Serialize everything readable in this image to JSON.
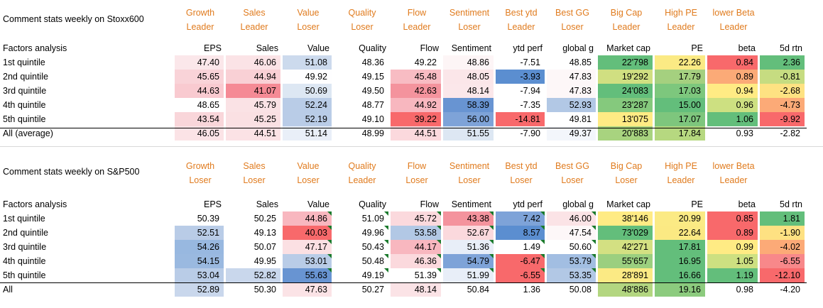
{
  "tables": [
    {
      "title": "Comment stats weekly on Stoxx600",
      "row_header_label": "Factors analysis",
      "headers": [
        [
          "Growth",
          "Leader"
        ],
        [
          "Sales",
          "Leader"
        ],
        [
          "Value",
          "Loser"
        ],
        [
          "Quality",
          "Loser"
        ],
        [
          "Flow",
          "Leader"
        ],
        [
          "Sentiment",
          "Loser"
        ],
        [
          "Best ytd",
          "Leader"
        ],
        [
          "Best GG",
          "Loser"
        ],
        [
          "Big Cap",
          "Leader"
        ],
        [
          "High PE",
          "Leader"
        ],
        [
          "lower Beta",
          "Leader"
        ],
        [
          "",
          ""
        ]
      ],
      "columns": [
        "EPS",
        "Sales",
        "Value",
        "Quality",
        "Flow",
        "Sentiment",
        "ytd perf",
        "global g",
        "Market cap",
        "PE",
        "beta",
        "5d rtn"
      ],
      "rows": [
        {
          "label": "1st quintile",
          "values": [
            "47.40",
            "46.06",
            "51.08",
            "48.36",
            "49.22",
            "48.86",
            "-7.51",
            "48.85",
            "22'798",
            "22.26",
            "0.84",
            "2.36"
          ],
          "colors": [
            "#fbe7ea",
            "#fbe3e6",
            "#ccdaed",
            "#ffffff",
            "#ffffff",
            "#fdf5f6",
            "#ffffff",
            "#ffffff",
            "#63be7b",
            "#fbea84",
            "#f8696b",
            "#63be7b"
          ]
        },
        {
          "label": "2nd quintile",
          "values": [
            "45.65",
            "44.94",
            "49.92",
            "49.15",
            "45.48",
            "48.05",
            "-3.93",
            "47.83",
            "19'292",
            "17.79",
            "0.89",
            "-0.81"
          ],
          "colors": [
            "#f9d3d8",
            "#f9d0d5",
            "#fefeff",
            "#ffffff",
            "#f8bcc3",
            "#fbe6e9",
            "#5b8ed0",
            "#fdf7f8",
            "#d0df81",
            "#a5d07f",
            "#fbaa77",
            "#c6dc81"
          ]
        },
        {
          "label": "3rd quintile",
          "values": [
            "44.63",
            "41.07",
            "50.69",
            "49.50",
            "42.63",
            "48.14",
            "-7.94",
            "47.83",
            "24'083",
            "17.03",
            "0.94",
            "-2.68"
          ],
          "colors": [
            "#f9cad0",
            "#f58a95",
            "#dde7f3",
            "#ffffff",
            "#f4939d",
            "#fbe7ea",
            "#ffffff",
            "#fdf7f8",
            "#63be7b",
            "#7dc77d",
            "#ffeb84",
            "#fee282"
          ]
        },
        {
          "label": "4th quintile",
          "values": [
            "48.65",
            "45.79",
            "52.24",
            "48.77",
            "44.92",
            "58.39",
            "-7.35",
            "52.93",
            "23'287",
            "15.00",
            "0.96",
            "-4.73"
          ],
          "colors": [
            "#ffffff",
            "#fae2e5",
            "#b9cce7",
            "#ffffff",
            "#f8b7bf",
            "#6894d2",
            "#ffffff",
            "#b2c8e5",
            "#85c97d",
            "#63be7b",
            "#cde081",
            "#fcaa77"
          ]
        },
        {
          "label": "5th quintile",
          "values": [
            "43.54",
            "45.25",
            "52.19",
            "49.10",
            "39.22",
            "56.00",
            "-14.81",
            "49.81",
            "13'075",
            "17.07",
            "1.06",
            "-9.92"
          ],
          "colors": [
            "#f9d6da",
            "#fae0e3",
            "#b9cce7",
            "#ffffff",
            "#f8696b",
            "#7ea3d8",
            "#f8696b",
            "#ffffff",
            "#ffeb84",
            "#7ec67d",
            "#63be7b",
            "#f8696b"
          ]
        },
        {
          "label": "All (average)",
          "values": [
            "46.05",
            "44.51",
            "51.14",
            "48.99",
            "44.51",
            "51.55",
            "-7.90",
            "49.37",
            "20'883",
            "17.84",
            "0.93",
            "-2.82"
          ],
          "colors": [
            "#fbe3e6",
            "#fbe2e5",
            "#e9eff8",
            "#ffffff",
            "#fbd9dd",
            "#dde7f3",
            "#ffffff",
            "#f3f6fb",
            "#a8d37f",
            "#b6d880",
            "#ffffff",
            "#ffffff"
          ]
        }
      ]
    },
    {
      "title": "Comment stats weekly on S&P500",
      "row_header_label": "Factors analysis",
      "headers": [
        [
          "Growth",
          "Loser"
        ],
        [
          "Sales",
          "Loser"
        ],
        [
          "Value",
          "Loser"
        ],
        [
          "Quality",
          "Leader"
        ],
        [
          "Flow",
          "Loser"
        ],
        [
          "Sentiment",
          "Loser"
        ],
        [
          "Best ytd",
          "Loser"
        ],
        [
          "Best GG",
          "Loser"
        ],
        [
          "Big Cap",
          "Loser"
        ],
        [
          "High PE",
          "Leader"
        ],
        [
          "lower Beta",
          "Leader"
        ],
        [
          "",
          ""
        ]
      ],
      "columns": [
        "EPS",
        "Sales",
        "Value",
        "Quality",
        "Flow",
        "Sentiment",
        "ytd perf",
        "global g",
        "Market cap",
        "PE",
        "beta",
        "5d rtn"
      ],
      "rows": [
        {
          "label": "1st quintile",
          "values": [
            "50.39",
            "50.25",
            "44.86",
            "51.09",
            "45.72",
            "43.38",
            "7.42",
            "46.00",
            "38'146",
            "20.99",
            "0.85",
            "1.81"
          ],
          "colors": [
            "#ffffff",
            "#ffffff",
            "#f8b7bf",
            "#ffffff",
            "#fbd9dd",
            "#f4939d",
            "#7ea3d8",
            "#fbe3e6",
            "#ffeb84",
            "#fbea84",
            "#f8696b",
            "#63be7b"
          ]
        },
        {
          "label": "2nd quintile",
          "values": [
            "52.51",
            "49.13",
            "40.03",
            "49.96",
            "53.58",
            "52.67",
            "8.57",
            "47.54",
            "73'029",
            "22.64",
            "0.89",
            "-1.90"
          ],
          "colors": [
            "#b9cce7",
            "#ffffff",
            "#f8696b",
            "#ffffff",
            "#b2c8e5",
            "#fbd9dd",
            "#5b8ed0",
            "#fdf7f8",
            "#63be7b",
            "#fbe983",
            "#f8696b",
            "#fee182"
          ]
        },
        {
          "label": "3rd quintile",
          "values": [
            "54.26",
            "50.07",
            "47.17",
            "50.43",
            "44.17",
            "51.36",
            "1.49",
            "50.60",
            "42'271",
            "17.81",
            "0.99",
            "-4.02"
          ],
          "colors": [
            "#98b8e0",
            "#ffffff",
            "#fbe0e3",
            "#ffffff",
            "#f8b7bf",
            "#e8eef8",
            "#ffffff",
            "#ffffff",
            "#d3e082",
            "#63be7b",
            "#ffeb84",
            "#fcaa77"
          ]
        },
        {
          "label": "4th quintile",
          "values": [
            "54.15",
            "49.95",
            "53.01",
            "50.48",
            "46.36",
            "54.79",
            "-6.47",
            "53.79",
            "55'657",
            "16.95",
            "1.05",
            "-6.55"
          ],
          "colors": [
            "#9ab9e0",
            "#ffffff",
            "#b9cce7",
            "#ffffff",
            "#fbd9dd",
            "#7ea3d8",
            "#f8696b",
            "#a2bee2",
            "#9bcf7f",
            "#63be7b",
            "#cde081",
            "#f8888a"
          ]
        },
        {
          "label": "5th quintile",
          "values": [
            "53.04",
            "52.82",
            "55.63",
            "49.19",
            "51.39",
            "51.99",
            "-6.55",
            "53.35",
            "28'891",
            "16.66",
            "1.19",
            "-12.10"
          ],
          "colors": [
            "#b9cce7",
            "#c9d7ec",
            "#6894d2",
            "#ffffff",
            "#ffffff",
            "#e8eef8",
            "#f8696b",
            "#b2c8e5",
            "#fbea84",
            "#63be7b",
            "#63be7b",
            "#f8696b"
          ]
        },
        {
          "label": "All",
          "values": [
            "52.89",
            "50.30",
            "47.63",
            "50.27",
            "48.14",
            "50.84",
            "1.36",
            "50.08",
            "48'886",
            "19.16",
            "0.98",
            "-4.20"
          ],
          "colors": [
            "#c9d7ec",
            "#ffffff",
            "#fbe3e6",
            "#ffffff",
            "#fbe3e6",
            "#ffffff",
            "#ffffff",
            "#ffffff",
            "#b3d680",
            "#8ccb7e",
            "#ffffff",
            "#ffffff"
          ]
        }
      ]
    }
  ],
  "header_color": "#e07b1e",
  "comment_marker_color": "#1a7a2c"
}
